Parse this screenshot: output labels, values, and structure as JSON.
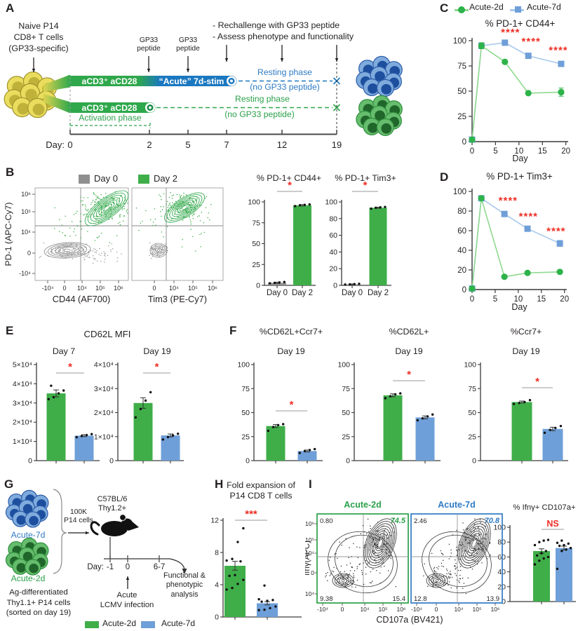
{
  "colors": {
    "green": "#3fae49",
    "blue": "#6f9fd8",
    "blue_dark": "#1b78c0",
    "green_text": "#2ba04a",
    "blue_text": "#2f7bc4",
    "red": "#ee2e24",
    "gray_bar": "#8f8f8f",
    "axis": "#3a3a3a"
  },
  "panel_labels": {
    "A": "A",
    "B": "B",
    "C": "C",
    "D": "D",
    "E": "E",
    "F": "F",
    "G": "G",
    "H": "H",
    "I": "I"
  },
  "panelA": {
    "naive": "Naive P14\nCD8+ T cells\n(GP33-specific)",
    "rechallenge": "- Rechallenge with GP33 peptide\n- Assess phenotype and functionality",
    "gp33_a": "GP33\npeptide",
    "gp33_b": "GP33\npeptide",
    "bar_top_left": "aCD3⁺ aCD28",
    "bar_top_right": "“Acute” 7d-stim",
    "bar_bottom": "aCD3⁺ aCD28",
    "activation": "Activation phase",
    "resting_blue": "Resting phase",
    "resting_blue2": "(no GP33 peptide)",
    "resting_green": "Resting phase",
    "resting_green2": "(no GP33 peptide)",
    "day_label": "Day:",
    "days": [
      "0",
      "2",
      "5",
      "7",
      "12",
      "19"
    ]
  },
  "panelB": {
    "legend": [
      {
        "label": "Day 0",
        "color": "#8f8f8f"
      },
      {
        "label": "Day 2",
        "color": "#3fae49"
      }
    ]
  },
  "panelC": {
    "legend": [
      "Acute-2d",
      "Acute-7d"
    ]
  },
  "panelE": {
    "title": "CD62L MFI"
  },
  "panelG": {
    "cluster_blue": "Acute-7d",
    "cluster_green": "Acute-2d",
    "sorted": "Ag-differentiated\nThy1.1+ P14 cells\n(sorted on day 19)",
    "transfer": "100K\nP14 cells",
    "mouse_label": "C57BL/6\nThy1.2+",
    "day_label": "Day:",
    "days": [
      "-1",
      "0",
      "6-7"
    ],
    "infection": "Acute\nLCMV infection",
    "analysis": "Functional &\nphenotypic\nanalysis",
    "legend": [
      {
        "label": "Acute-2d",
        "color": "#3fae49"
      },
      {
        "label": "Acute-7d",
        "color": "#6f9fd8"
      }
    ]
  },
  "flow_B": {
    "ylabel": "PD-1 (APC-Cy7)",
    "yticks": [
      "10⁶",
      "10⁵",
      "10⁴",
      "0",
      "-10⁴"
    ],
    "plots": [
      {
        "xlabel": "CD44 (AF700)",
        "xticks": [
          "-10⁴",
          "0",
          "10⁴",
          "10⁵",
          "10⁶"
        ]
      },
      {
        "xlabel": "Tim3 (PE-Cy7)",
        "xticks": [
          "0",
          "10⁴",
          "10⁵",
          "10⁶"
        ]
      }
    ]
  },
  "flow_I": {
    "ylabel": "Ifnγ(APC)",
    "xlabel": "CD107a (BV421)",
    "yticks": [
      "10⁶",
      "10⁵",
      "10⁴",
      "0",
      "-10⁴"
    ],
    "xticks": [
      "-10⁴",
      "0",
      "10⁴",
      "10⁵",
      "10⁶"
    ],
    "plots": [
      {
        "title": "Acute-2d",
        "color": "#2ba04a",
        "quad": {
          "tl": "0.80",
          "tr": "74.5",
          "bl": "9.38",
          "br": "15.4"
        }
      },
      {
        "title": "Acute-7d",
        "color": "#2f7bc4",
        "quad": {
          "tl": "2.46",
          "tr": "70.8",
          "bl": "12.8",
          "br": "13.9"
        }
      }
    ]
  },
  "chart_data": [
    {
      "id": "C",
      "type": "line",
      "title": "% PD-1+ CD44+",
      "xlabel": "Day",
      "x": [
        0,
        2,
        7,
        12,
        19
      ],
      "xlim": [
        0,
        20.5
      ],
      "ylim": [
        0,
        100
      ],
      "yticks": [
        0,
        25,
        50,
        75,
        100
      ],
      "xticks": [
        0,
        5,
        10,
        15,
        20
      ],
      "series": [
        {
          "name": "Acute-7d",
          "marker": "square",
          "color": "#6f9fd8",
          "line": "#a9c9ec",
          "values": [
            2,
            95,
            98,
            85,
            77
          ],
          "errs": [
            0,
            0,
            0,
            0,
            2
          ]
        },
        {
          "name": "Acute-2d",
          "marker": "circle",
          "color": "#2db34a",
          "line": "#8fd98f",
          "values": [
            2,
            95,
            79,
            48,
            49
          ],
          "errs": [
            0,
            3,
            0,
            0,
            4
          ]
        }
      ],
      "sig": [
        {
          "t": "****",
          "x": 8.2,
          "y": 105
        },
        {
          "t": "****",
          "x": 12.6,
          "y": 96
        },
        {
          "t": "****",
          "x": 18.4,
          "y": 87
        }
      ]
    },
    {
      "id": "D",
      "type": "line",
      "title": "% PD-1+ Tim3+",
      "xlabel": "Day",
      "x": [
        0,
        2,
        7,
        12,
        19
      ],
      "xlim": [
        0,
        20.5
      ],
      "ylim": [
        0,
        100
      ],
      "yticks": [
        0,
        20,
        40,
        60,
        80,
        100
      ],
      "xticks": [
        0,
        5,
        10,
        15,
        20
      ],
      "series": [
        {
          "name": "Acute-7d",
          "marker": "square",
          "color": "#6f9fd8",
          "line": "#a9c9ec",
          "values": [
            1,
            93,
            77,
            62,
            47
          ],
          "errs": [
            0,
            0,
            0,
            0,
            3
          ]
        },
        {
          "name": "Acute-2d",
          "marker": "circle",
          "color": "#2db34a",
          "line": "#8fd98f",
          "values": [
            1,
            93,
            13,
            17,
            18
          ],
          "errs": [
            0,
            0,
            0,
            0,
            0
          ]
        }
      ],
      "sig": [
        {
          "t": "****",
          "x": 7.8,
          "y": 87
        },
        {
          "t": "****",
          "x": 12.2,
          "y": 71
        },
        {
          "t": "****",
          "x": 18.2,
          "y": 56
        }
      ]
    },
    {
      "id": "B1",
      "type": "bar",
      "title": "% PD-1+ CD44+",
      "categories": [
        "Day 0",
        "Day 2"
      ],
      "values": [
        3,
        96
      ],
      "errs": [
        0.8,
        0.8
      ],
      "colors": [
        "#8f8f8f",
        "#3fae49"
      ],
      "ymax": 100,
      "yticks": [
        {
          "v": 0,
          "l": "0"
        },
        {
          "v": 25,
          "l": "25"
        },
        {
          "v": 50,
          "l": "50"
        },
        {
          "v": 75,
          "l": "75"
        },
        {
          "v": 100,
          "l": "100"
        }
      ],
      "points": [
        [
          2.5,
          3,
          3.5,
          4
        ],
        [
          95,
          96,
          96.5,
          97
        ]
      ],
      "sig": "*"
    },
    {
      "id": "B2",
      "type": "bar",
      "title": "% PD-1+ Tim3+",
      "categories": [
        "Day 0",
        "Day 2"
      ],
      "values": [
        1.2,
        93
      ],
      "errs": [
        0.5,
        0.7
      ],
      "colors": [
        "#8f8f8f",
        "#3fae49"
      ],
      "ymax": 100,
      "yticks": [
        {
          "v": 0,
          "l": "0"
        },
        {
          "v": 20,
          "l": "20"
        },
        {
          "v": 40,
          "l": "40"
        },
        {
          "v": 60,
          "l": "60"
        },
        {
          "v": 80,
          "l": "80"
        },
        {
          "v": 100,
          "l": "100"
        }
      ],
      "points": [
        [
          1,
          1.2,
          1.5,
          1.8
        ],
        [
          92,
          93,
          93.5,
          94
        ]
      ],
      "sig": "*"
    },
    {
      "id": "E1",
      "type": "bar",
      "subtitle": "Day 7",
      "values": [
        3.5,
        1.3
      ],
      "errs": [
        0.18,
        0.05
      ],
      "colors": [
        "#3fae49",
        "#6f9fd8"
      ],
      "ymax": 5,
      "yticks": [
        {
          "v": 0,
          "l": "0"
        },
        {
          "v": 1,
          "l": "1×10⁴"
        },
        {
          "v": 2,
          "l": "2×10⁴"
        },
        {
          "v": 3,
          "l": "3×10⁴"
        },
        {
          "v": 4,
          "l": "4×10⁴"
        },
        {
          "v": 5,
          "l": "5×10⁴"
        }
      ],
      "points": [
        [
          3.2,
          3.3,
          3.5,
          3.65,
          3.9
        ],
        [
          1.22,
          1.28,
          1.33,
          1.38
        ]
      ],
      "sig": "*"
    },
    {
      "id": "E2",
      "type": "bar",
      "subtitle": "Day 19",
      "values": [
        2.4,
        1.05
      ],
      "errs": [
        0.22,
        0.06
      ],
      "colors": [
        "#3fae49",
        "#6f9fd8"
      ],
      "ymax": 4,
      "yticks": [
        {
          "v": 0,
          "l": "0"
        },
        {
          "v": 1,
          "l": "1×10⁴"
        },
        {
          "v": 2,
          "l": "2×10⁴"
        },
        {
          "v": 3,
          "l": "3×10⁴"
        },
        {
          "v": 4,
          "l": "4×10⁴"
        }
      ],
      "points": [
        [
          1.8,
          2.15,
          2.5,
          2.85
        ],
        [
          0.88,
          0.98,
          1.05,
          1.12
        ]
      ],
      "sig": "*"
    },
    {
      "id": "F1",
      "type": "bar",
      "title": "%CD62L+Ccr7+",
      "subtitle": "Day 19",
      "values": [
        36,
        10
      ],
      "errs": [
        1.5,
        1
      ],
      "colors": [
        "#3fae49",
        "#6f9fd8"
      ],
      "ymax": 100,
      "yticks": [
        {
          "v": 0,
          "l": "0"
        },
        {
          "v": 25,
          "l": "25"
        },
        {
          "v": 50,
          "l": "50"
        },
        {
          "v": 75,
          "l": "75"
        },
        {
          "v": 100,
          "l": "100"
        }
      ],
      "points": [
        [
          31,
          35,
          37,
          38
        ],
        [
          8,
          10,
          11,
          12
        ]
      ],
      "sig": "*"
    },
    {
      "id": "F2",
      "type": "bar",
      "title": "%CD62L+",
      "subtitle": "Day 19",
      "values": [
        68,
        45
      ],
      "errs": [
        1.5,
        1.5
      ],
      "colors": [
        "#3fae49",
        "#6f9fd8"
      ],
      "ymax": 100,
      "yticks": [
        {
          "v": 0,
          "l": "0"
        },
        {
          "v": 25,
          "l": "25"
        },
        {
          "v": 50,
          "l": "50"
        },
        {
          "v": 75,
          "l": "75"
        },
        {
          "v": 100,
          "l": "100"
        }
      ],
      "points": [
        [
          65,
          67,
          69,
          70
        ],
        [
          42,
          44,
          46,
          48
        ]
      ],
      "sig": "*"
    },
    {
      "id": "F3",
      "type": "bar",
      "title": "%Ccr7+",
      "subtitle": "Day 19",
      "values": [
        61,
        33
      ],
      "errs": [
        1,
        1.8
      ],
      "colors": [
        "#3fae49",
        "#6f9fd8"
      ],
      "ymax": 100,
      "yticks": [
        {
          "v": 0,
          "l": "0"
        },
        {
          "v": 25,
          "l": "25"
        },
        {
          "v": 50,
          "l": "50"
        },
        {
          "v": 75,
          "l": "75"
        },
        {
          "v": 100,
          "l": "100"
        }
      ],
      "points": [
        [
          59,
          60,
          61,
          63
        ],
        [
          29,
          32,
          34,
          36
        ]
      ],
      "sig": "*"
    },
    {
      "id": "H",
      "type": "bar",
      "title": "Fold expansion of\nP14 CD8 T cells",
      "values": [
        6.35,
        1.7
      ],
      "errs": [
        0.55,
        0.2
      ],
      "colors": [
        "#3fae49",
        "#6f9fd8"
      ],
      "ymax": 12,
      "yticks": [
        {
          "v": 0,
          "l": "0"
        },
        {
          "v": 4,
          "l": "4"
        },
        {
          "v": 8,
          "l": "8"
        },
        {
          "v": 12,
          "l": "12"
        }
      ],
      "points": [
        [
          3.4,
          3.6,
          4.1,
          4.6,
          5.1,
          5.2,
          6.9,
          7.0,
          7.2,
          9.3,
          11.0
        ],
        [
          0.85,
          0.9,
          1.1,
          1.3,
          1.9,
          2.0,
          2.1,
          2.2,
          3.9
        ]
      ],
      "sig": "***"
    },
    {
      "id": "IB",
      "type": "bar",
      "title": "% Ifnγ+ CD107a+",
      "title_size": 11.3,
      "values": [
        68,
        72
      ],
      "errs": [
        3,
        2.5
      ],
      "colors": [
        "#3fae49",
        "#6f9fd8"
      ],
      "ymax": 100,
      "yticks": [
        {
          "v": 0,
          "l": "0"
        },
        {
          "v": 20,
          "l": "20"
        },
        {
          "v": 40,
          "l": "40"
        },
        {
          "v": 60,
          "l": "60"
        },
        {
          "v": 80,
          "l": "80"
        },
        {
          "v": 100,
          "l": "100"
        }
      ],
      "points": [
        [
          50,
          55,
          58,
          60,
          62,
          65,
          68,
          76,
          80,
          82,
          83
        ],
        [
          44,
          68,
          70,
          72,
          75,
          76,
          78,
          79,
          82
        ]
      ],
      "sig": "NS"
    }
  ]
}
